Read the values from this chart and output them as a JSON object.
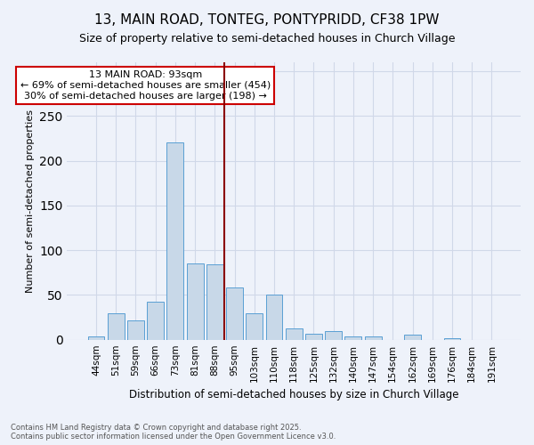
{
  "title": "13, MAIN ROAD, TONTEG, PONTYPRIDD, CF38 1PW",
  "subtitle": "Size of property relative to semi-detached houses in Church Village",
  "xlabel": "Distribution of semi-detached houses by size in Church Village",
  "ylabel": "Number of semi-detached properties",
  "categories": [
    "44sqm",
    "51sqm",
    "59sqm",
    "66sqm",
    "73sqm",
    "81sqm",
    "88sqm",
    "95sqm",
    "103sqm",
    "110sqm",
    "118sqm",
    "125sqm",
    "132sqm",
    "140sqm",
    "147sqm",
    "154sqm",
    "162sqm",
    "169sqm",
    "176sqm",
    "184sqm",
    "191sqm"
  ],
  "values": [
    4,
    30,
    22,
    42,
    220,
    85,
    84,
    58,
    30,
    50,
    13,
    7,
    10,
    4,
    4,
    0,
    6,
    0,
    2,
    0,
    0
  ],
  "bar_color": "#c8d8e8",
  "bar_edge_color": "#5a9fd4",
  "grid_color": "#d0d8e8",
  "vline_index": 7,
  "vline_color": "#8b0000",
  "annotation_text": "13 MAIN ROAD: 93sqm\n← 69% of semi-detached houses are smaller (454)\n30% of semi-detached houses are larger (198) →",
  "annotation_box_color": "#ffffff",
  "annotation_box_edge": "#cc0000",
  "ylim": [
    0,
    310
  ],
  "footer": "Contains HM Land Registry data © Crown copyright and database right 2025.\nContains public sector information licensed under the Open Government Licence v3.0.",
  "background_color": "#eef2fa",
  "title_fontsize": 11,
  "subtitle_fontsize": 9
}
